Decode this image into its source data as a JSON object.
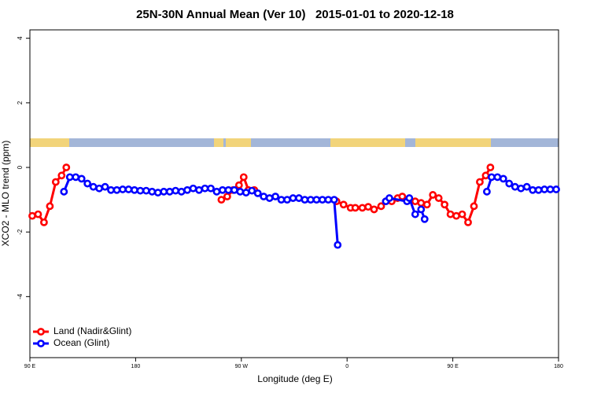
{
  "chart_data": {
    "type": "line",
    "title": "25N-30N Annual Mean (Ver 10)   2015-01-01 to 2020-12-18",
    "x_label": "Longitude (deg E)",
    "y_label": "XCO2 - MLO trend (ppm)",
    "xlim": [
      90,
      540
    ],
    "xticks": [
      {
        "value": 90,
        "label": "90 E"
      },
      180,
      {
        "value": 270,
        "label": "90 W"
      },
      {
        "value": 360,
        "label": "0"
      },
      {
        "value": 450,
        "label": "90 E"
      },
      {
        "value": 540,
        "label": "180"
      }
    ],
    "ylim": [
      -5.89,
      4.26
    ],
    "yticks": [
      4,
      2,
      0,
      -2,
      -4
    ],
    "legend": "bottom-left",
    "series": [
      {
        "name": "Land (Nadir&Glint)",
        "color": "#ff0000",
        "x": [
          92,
          97,
          102,
          107,
          112,
          117,
          121,
          null,
          253,
          258,
          263,
          268,
          272,
          276,
          281,
          null,
          351,
          357,
          363,
          367,
          373,
          378,
          383,
          389,
          393,
          398,
          403,
          407,
          413,
          418,
          423,
          428,
          433,
          438,
          443,
          448,
          453,
          458,
          463,
          468,
          473,
          478,
          482
        ],
        "values": [
          -1.5,
          -1.45,
          -1.7,
          -1.2,
          -0.45,
          -0.25,
          0.0,
          null,
          -1.0,
          -0.9,
          -0.7,
          -0.55,
          -0.3,
          -0.7,
          -0.7,
          null,
          -1.05,
          -1.15,
          -1.25,
          -1.25,
          -1.25,
          -1.22,
          -1.3,
          -1.2,
          -1.05,
          -1.05,
          -0.95,
          -0.9,
          -1.0,
          -1.05,
          -1.1,
          -1.15,
          -0.85,
          -0.95,
          -1.15,
          -1.45,
          -1.5,
          -1.45,
          -1.7,
          -1.2,
          -0.45,
          -0.25,
          0.0
        ]
      },
      {
        "name": "Ocean (Glint)",
        "color": "#0000ff",
        "x": [
          119,
          124,
          129,
          134,
          139,
          144,
          149,
          154,
          159,
          164,
          169,
          174,
          179,
          184,
          189,
          194,
          199,
          204,
          209,
          214,
          219,
          224,
          229,
          234,
          239,
          244,
          249,
          254,
          259,
          264,
          269,
          274,
          279,
          284,
          289,
          294,
          299,
          304,
          309,
          314,
          319,
          324,
          329,
          334,
          339,
          344,
          349,
          352,
          null,
          393,
          396,
          411,
          413,
          418,
          423,
          426,
          null,
          479,
          483,
          488,
          493,
          498,
          503,
          508,
          513,
          518,
          523,
          528,
          533,
          538
        ],
        "values": [
          -0.75,
          -0.3,
          -0.3,
          -0.35,
          -0.5,
          -0.6,
          -0.65,
          -0.6,
          -0.7,
          -0.7,
          -0.68,
          -0.68,
          -0.7,
          -0.72,
          -0.72,
          -0.75,
          -0.78,
          -0.75,
          -0.75,
          -0.72,
          -0.75,
          -0.7,
          -0.65,
          -0.7,
          -0.65,
          -0.65,
          -0.75,
          -0.7,
          -0.7,
          -0.7,
          -0.75,
          -0.78,
          -0.72,
          -0.8,
          -0.9,
          -0.95,
          -0.9,
          -1.0,
          -1.0,
          -0.95,
          -0.95,
          -1.0,
          -1.0,
          -1.0,
          -1.0,
          -1.0,
          -1.0,
          -2.4,
          null,
          -1.05,
          -0.95,
          -1.05,
          -0.95,
          -1.45,
          -1.3,
          -1.6,
          null,
          -0.75,
          -0.3,
          -0.3,
          -0.35,
          -0.5,
          -0.6,
          -0.65,
          -0.6,
          -0.7,
          -0.7,
          -0.68,
          -0.68,
          -0.68
        ]
      }
    ]
  }
}
